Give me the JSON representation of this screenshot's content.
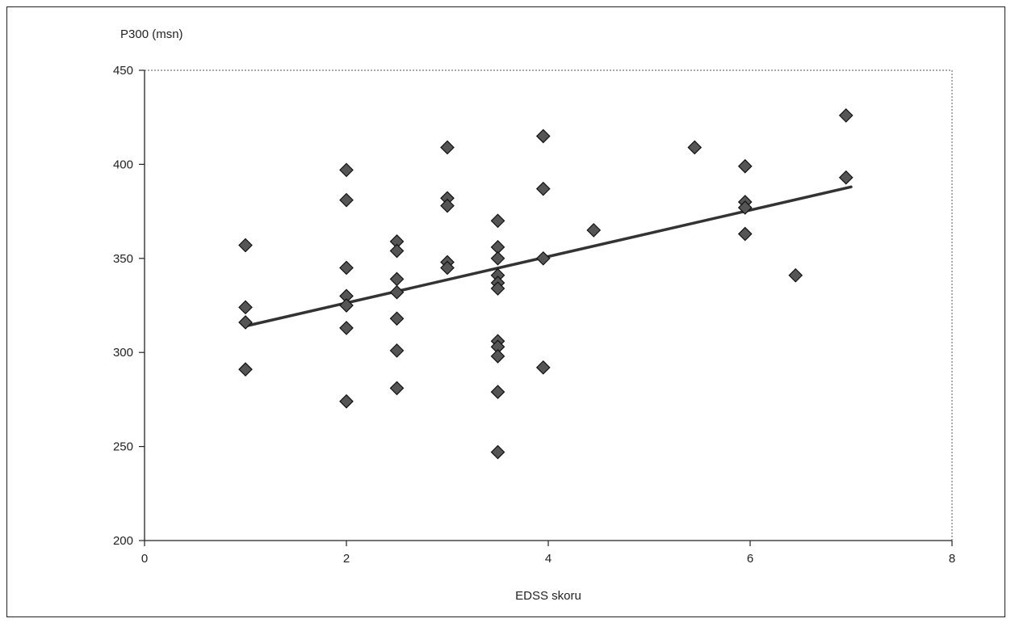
{
  "chart_data": {
    "type": "scatter",
    "title": "",
    "xlabel": "EDSS skoru",
    "ylabel": "P300 (msn)",
    "xlim": [
      0,
      8
    ],
    "ylim": [
      200,
      450
    ],
    "xticks": [
      0,
      2,
      4,
      6,
      8
    ],
    "yticks": [
      200,
      250,
      300,
      350,
      400,
      450
    ],
    "grid": false,
    "legend": "none",
    "marker": "diamond",
    "colors": {
      "marker_fill": "#555555",
      "marker_stroke": "#111111",
      "trend_line": "#333333",
      "axis": "#222222"
    },
    "series": [
      {
        "points": [
          [
            1,
            357
          ],
          [
            1,
            324
          ],
          [
            1,
            316
          ],
          [
            1,
            291
          ],
          [
            2,
            397
          ],
          [
            2,
            381
          ],
          [
            2,
            345
          ],
          [
            2,
            330
          ],
          [
            2,
            325
          ],
          [
            2,
            313
          ],
          [
            2,
            274
          ],
          [
            2.5,
            359
          ],
          [
            2.5,
            354
          ],
          [
            2.5,
            339
          ],
          [
            2.5,
            332
          ],
          [
            2.5,
            318
          ],
          [
            2.5,
            301
          ],
          [
            2.5,
            281
          ],
          [
            3,
            409
          ],
          [
            3,
            382
          ],
          [
            3,
            378
          ],
          [
            3,
            348
          ],
          [
            3,
            345
          ],
          [
            3.5,
            370
          ],
          [
            3.5,
            356
          ],
          [
            3.5,
            350
          ],
          [
            3.5,
            341
          ],
          [
            3.5,
            337
          ],
          [
            3.5,
            334
          ],
          [
            3.5,
            306
          ],
          [
            3.5,
            303
          ],
          [
            3.5,
            298
          ],
          [
            3.5,
            279
          ],
          [
            3.5,
            247
          ],
          [
            3.95,
            415
          ],
          [
            3.95,
            387
          ],
          [
            3.95,
            350
          ],
          [
            3.95,
            292
          ],
          [
            4.45,
            365
          ],
          [
            5.45,
            409
          ],
          [
            5.95,
            399
          ],
          [
            5.95,
            380
          ],
          [
            5.95,
            377
          ],
          [
            5.95,
            363
          ],
          [
            6.45,
            341
          ],
          [
            6.95,
            426
          ],
          [
            6.95,
            393
          ]
        ]
      }
    ],
    "trendline": {
      "x": [
        1,
        7
      ],
      "y": [
        314,
        388
      ]
    }
  }
}
